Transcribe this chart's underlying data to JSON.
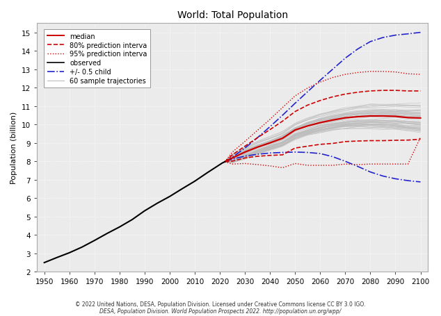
{
  "title": "World: Total Population",
  "ylabel": "Population (billion)",
  "xlabel": "",
  "xlim": [
    1947,
    2103
  ],
  "ylim": [
    2,
    15.5
  ],
  "xticks": [
    1950,
    1960,
    1970,
    1980,
    1990,
    2000,
    2010,
    2020,
    2030,
    2040,
    2050,
    2060,
    2070,
    2080,
    2090,
    2100
  ],
  "yticks": [
    2,
    3,
    4,
    5,
    6,
    7,
    8,
    9,
    10,
    11,
    12,
    13,
    14,
    15
  ],
  "background_color": "#ebebeb",
  "grid_color": "#ffffff",
  "footnote1": "© 2022 United Nations, DESA, Population Division. Licensed under Creative Commons license CC BY 3.0 IGO.",
  "footnote2": "DESA, Population Division. World Population Prospects 2022. http://population.un.org/wpp/",
  "observed_color": "#000000",
  "median_color": "#cc0000",
  "pi80_color": "#cc0000",
  "pi95_color": "#cc0000",
  "child_color": "#2222cc",
  "trajectory_color": "#bbbbbb",
  "observed_data": {
    "years": [
      1950,
      1955,
      1960,
      1965,
      1970,
      1975,
      1980,
      1985,
      1990,
      1995,
      2000,
      2005,
      2010,
      2015,
      2021,
      2022
    ],
    "values": [
      2.499,
      2.773,
      3.034,
      3.339,
      3.7,
      4.079,
      4.434,
      4.831,
      5.31,
      5.719,
      6.09,
      6.511,
      6.919,
      7.38,
      7.909,
      7.975
    ]
  },
  "median_data": {
    "years": [
      2022,
      2025,
      2030,
      2035,
      2040,
      2045,
      2050,
      2055,
      2060,
      2065,
      2070,
      2075,
      2080,
      2085,
      2090,
      2095,
      2100
    ],
    "values": [
      7.975,
      8.18,
      8.5,
      8.77,
      9.0,
      9.25,
      9.7,
      9.92,
      10.1,
      10.24,
      10.36,
      10.42,
      10.46,
      10.46,
      10.44,
      10.37,
      10.35
    ]
  },
  "pi80_upper": {
    "years": [
      2022,
      2025,
      2030,
      2035,
      2040,
      2045,
      2050,
      2055,
      2060,
      2065,
      2070,
      2075,
      2080,
      2085,
      2090,
      2095,
      2100
    ],
    "values": [
      7.975,
      8.35,
      8.82,
      9.28,
      9.72,
      10.18,
      10.7,
      11.05,
      11.3,
      11.5,
      11.65,
      11.75,
      11.82,
      11.85,
      11.85,
      11.82,
      11.82
    ]
  },
  "pi80_lower": {
    "years": [
      2022,
      2025,
      2030,
      2035,
      2040,
      2045,
      2050,
      2055,
      2060,
      2065,
      2070,
      2075,
      2080,
      2085,
      2090,
      2095,
      2100
    ],
    "values": [
      7.975,
      8.01,
      8.18,
      8.27,
      8.32,
      8.35,
      8.72,
      8.82,
      8.92,
      8.97,
      9.07,
      9.1,
      9.12,
      9.12,
      9.14,
      9.15,
      9.2
    ]
  },
  "pi95_upper": {
    "years": [
      2022,
      2025,
      2030,
      2035,
      2040,
      2045,
      2050,
      2055,
      2060,
      2065,
      2070,
      2075,
      2080,
      2085,
      2090,
      2095,
      2100
    ],
    "values": [
      7.975,
      8.5,
      9.08,
      9.68,
      10.28,
      10.92,
      11.55,
      11.98,
      12.3,
      12.55,
      12.72,
      12.82,
      12.88,
      12.88,
      12.85,
      12.75,
      12.72
    ]
  },
  "pi95_lower": {
    "years": [
      2022,
      2025,
      2030,
      2035,
      2040,
      2045,
      2050,
      2055,
      2060,
      2065,
      2070,
      2075,
      2080,
      2085,
      2090,
      2095,
      2100
    ],
    "values": [
      7.975,
      7.85,
      7.88,
      7.82,
      7.75,
      7.65,
      7.88,
      7.78,
      7.78,
      7.78,
      7.85,
      7.82,
      7.85,
      7.85,
      7.85,
      7.85,
      9.3
    ]
  },
  "child_upper": {
    "years": [
      2022,
      2025,
      2030,
      2035,
      2040,
      2045,
      2050,
      2055,
      2060,
      2065,
      2070,
      2075,
      2080,
      2085,
      2090,
      2095,
      2100
    ],
    "values": [
      7.975,
      8.22,
      8.72,
      9.28,
      9.88,
      10.5,
      11.15,
      11.78,
      12.4,
      13.0,
      13.6,
      14.1,
      14.5,
      14.72,
      14.85,
      14.92,
      15.0
    ]
  },
  "child_lower": {
    "years": [
      2022,
      2025,
      2030,
      2035,
      2040,
      2045,
      2050,
      2055,
      2060,
      2065,
      2070,
      2075,
      2080,
      2085,
      2090,
      2095,
      2100
    ],
    "values": [
      7.975,
      8.12,
      8.28,
      8.38,
      8.45,
      8.48,
      8.5,
      8.48,
      8.42,
      8.25,
      8.0,
      7.72,
      7.42,
      7.2,
      7.05,
      6.95,
      6.88
    ]
  },
  "num_trajectories": 60
}
